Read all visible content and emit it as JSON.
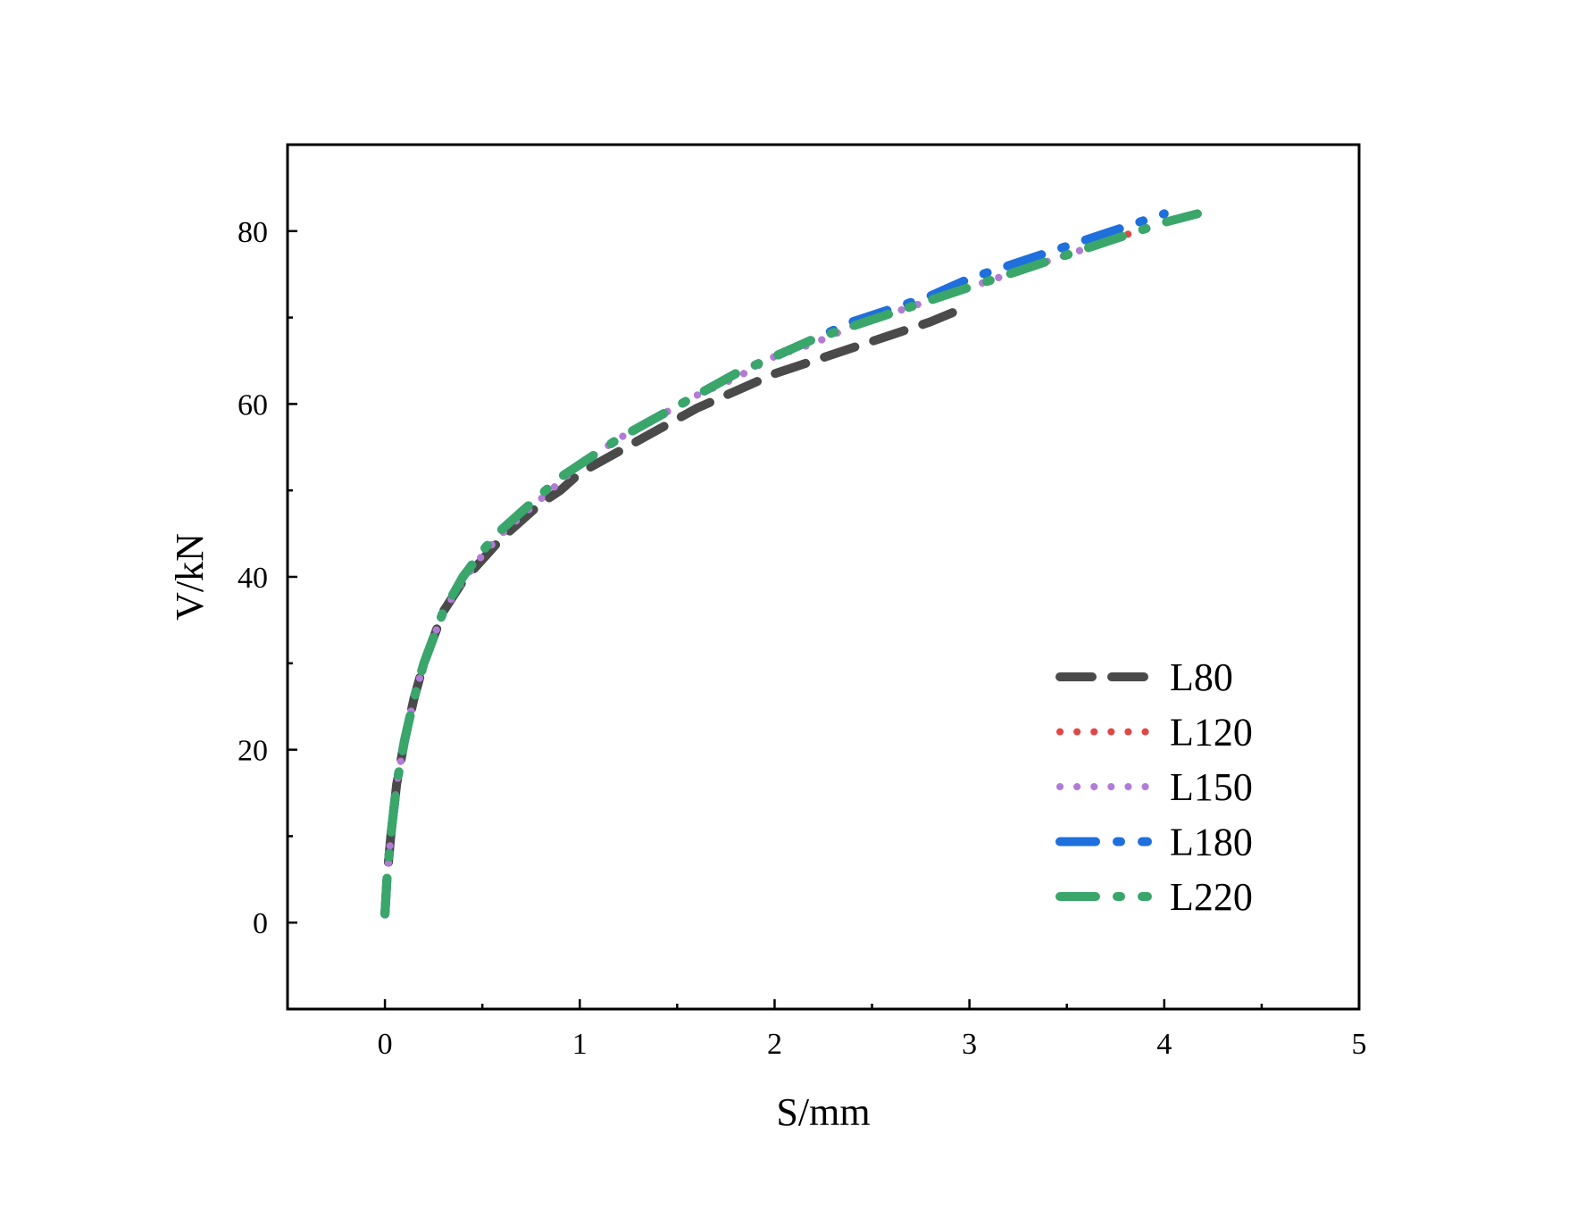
{
  "chart_data": {
    "type": "line",
    "title": "",
    "xlabel": "S/mm",
    "ylabel": "V/kN",
    "xlim": [
      -0.5,
      5
    ],
    "ylim": [
      -10,
      90
    ],
    "xticks": [
      0,
      1,
      2,
      3,
      4,
      5
    ],
    "yticks": [
      0,
      20,
      40,
      60,
      80
    ],
    "x_minor_step": 0.5,
    "y_minor_step": 10,
    "grid": false,
    "legend_position": "lower-right",
    "series": [
      {
        "name": "L80",
        "color": "#4a4a4a",
        "style": "dash",
        "x": [
          0.0,
          0.01,
          0.03,
          0.06,
          0.1,
          0.15,
          0.2,
          0.3,
          0.4,
          0.5,
          0.6,
          0.7,
          0.8,
          0.9,
          1.0,
          1.2,
          1.4,
          1.6,
          1.8,
          2.0,
          2.2,
          2.4,
          2.6,
          2.8,
          2.96
        ],
        "y": [
          1,
          5,
          10,
          16,
          21,
          26,
          30,
          36,
          39.5,
          42,
          44.5,
          46.5,
          48.5,
          50,
          52,
          54.5,
          57,
          59.5,
          61.5,
          63.5,
          65,
          66.5,
          68,
          69.5,
          71
        ]
      },
      {
        "name": "L120",
        "color": "#e04848",
        "style": "dot",
        "x": [
          0.0,
          0.01,
          0.03,
          0.06,
          0.1,
          0.15,
          0.2,
          0.3,
          0.4,
          0.5,
          0.6,
          0.7,
          0.8,
          0.9,
          1.0,
          1.2,
          1.4,
          1.6,
          1.8,
          2.0,
          2.2,
          2.4,
          2.6,
          2.8,
          3.0,
          3.2,
          3.4,
          3.6,
          3.8,
          3.9
        ],
        "y": [
          1,
          5,
          10,
          16,
          21,
          26,
          30,
          36,
          39.5,
          42.5,
          45,
          47,
          49,
          51,
          53,
          56,
          58.5,
          61,
          63,
          65.5,
          67,
          69,
          70.5,
          72,
          73.5,
          75,
          76.5,
          78,
          79.5,
          80.5
        ]
      },
      {
        "name": "L150",
        "color": "#b07cd8",
        "style": "dot",
        "x": [
          0.0,
          0.01,
          0.03,
          0.06,
          0.1,
          0.15,
          0.2,
          0.3,
          0.4,
          0.5,
          0.6,
          0.7,
          0.8,
          0.9,
          1.0,
          1.2,
          1.4,
          1.6,
          1.8,
          2.0,
          2.2,
          2.4,
          2.6,
          2.8,
          3.0,
          3.2,
          3.4,
          3.6,
          3.8
        ],
        "y": [
          1,
          5,
          10,
          16,
          21,
          26,
          30,
          36,
          39.5,
          42.5,
          45,
          47,
          49,
          51,
          53,
          56,
          58.5,
          61,
          63,
          65.5,
          67,
          69,
          70.5,
          72,
          73.5,
          75,
          76.5,
          78,
          79.5
        ]
      },
      {
        "name": "L180",
        "color": "#1f6fdc",
        "style": "dash-dot",
        "x": [
          0.0,
          0.01,
          0.03,
          0.06,
          0.1,
          0.15,
          0.2,
          0.3,
          0.4,
          0.5,
          0.6,
          0.7,
          0.8,
          0.9,
          1.0,
          1.2,
          1.4,
          1.6,
          1.8,
          2.0,
          2.2,
          2.4,
          2.6,
          2.8,
          3.0,
          3.2,
          3.4,
          3.6,
          3.8,
          4.0
        ],
        "y": [
          1,
          5,
          10,
          16,
          21,
          26,
          30,
          36,
          40,
          43,
          45.5,
          47.5,
          49.5,
          51.5,
          53,
          56,
          58.5,
          61,
          63.5,
          65.5,
          67.5,
          69.5,
          71,
          72.5,
          74.5,
          76,
          77.5,
          79,
          80.5,
          82
        ]
      },
      {
        "name": "L220",
        "color": "#3aa66a",
        "style": "dash-dot",
        "x": [
          0.0,
          0.01,
          0.03,
          0.06,
          0.1,
          0.15,
          0.2,
          0.3,
          0.4,
          0.5,
          0.6,
          0.7,
          0.8,
          0.9,
          1.0,
          1.2,
          1.4,
          1.6,
          1.8,
          2.0,
          2.2,
          2.4,
          2.6,
          2.8,
          3.0,
          3.2,
          3.4,
          3.6,
          3.8,
          4.0,
          4.17
        ],
        "y": [
          1,
          5,
          10,
          16,
          21,
          26,
          30,
          36,
          40,
          43,
          45.5,
          47.5,
          49.5,
          51.5,
          53,
          56,
          58.5,
          61,
          63.5,
          65.5,
          67.5,
          69,
          70.5,
          72,
          73.5,
          75,
          76.5,
          78,
          79.5,
          81,
          82
        ]
      }
    ]
  }
}
